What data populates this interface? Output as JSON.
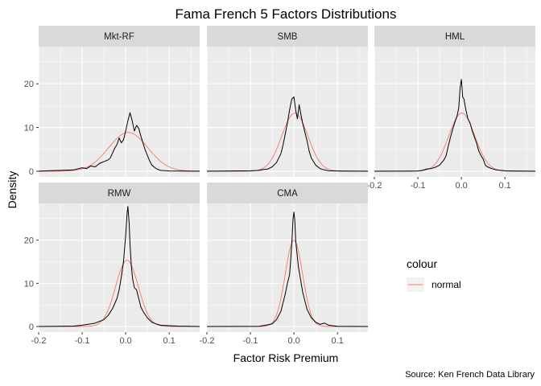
{
  "chart_data": {
    "type": "line",
    "title": "Fama French 5 Factors Distributions",
    "xlabel": "Factor Risk Premium",
    "ylabel": "Density",
    "caption": "Source: Ken French Data Library",
    "xlim": [
      -0.2,
      0.17
    ],
    "ylim": [
      -1.3,
      28.5
    ],
    "x_ticks": [
      -0.2,
      -0.1,
      0.0,
      0.1
    ],
    "x_tick_labels": [
      "-0.2",
      "-0.1",
      "0.0",
      "0.1"
    ],
    "y_ticks": [
      0,
      10,
      20
    ],
    "y_tick_labels": [
      "0",
      "10",
      "20"
    ],
    "grid": true,
    "legend": {
      "title": "colour",
      "position": "right",
      "entries": [
        {
          "label": "normal",
          "color": "#F8766D"
        }
      ]
    },
    "series_colors": {
      "empirical": "#000000",
      "normal": "#F8766D"
    },
    "facets": [
      {
        "label": "Mkt-RF",
        "empirical": [
          [
            -0.2,
            0
          ],
          [
            -0.18,
            0.1
          ],
          [
            -0.15,
            0.2
          ],
          [
            -0.12,
            0.3
          ],
          [
            -0.1,
            0.8
          ],
          [
            -0.09,
            0.6
          ],
          [
            -0.08,
            1.2
          ],
          [
            -0.07,
            1.0
          ],
          [
            -0.06,
            1.8
          ],
          [
            -0.05,
            2.2
          ],
          [
            -0.04,
            2.6
          ],
          [
            -0.035,
            3.1
          ],
          [
            -0.03,
            4.2
          ],
          [
            -0.025,
            5.3
          ],
          [
            -0.02,
            6.1
          ],
          [
            -0.015,
            7.6
          ],
          [
            -0.01,
            6.5
          ],
          [
            -0.005,
            7.2
          ],
          [
            0,
            9.2
          ],
          [
            0.005,
            11.5
          ],
          [
            0.01,
            13.4
          ],
          [
            0.015,
            11.5
          ],
          [
            0.02,
            9.2
          ],
          [
            0.025,
            10.5
          ],
          [
            0.03,
            9.8
          ],
          [
            0.035,
            8.0
          ],
          [
            0.04,
            6.4
          ],
          [
            0.045,
            4.8
          ],
          [
            0.05,
            3.6
          ],
          [
            0.055,
            2.4
          ],
          [
            0.06,
            1.4
          ],
          [
            0.07,
            0.6
          ],
          [
            0.08,
            0.2
          ],
          [
            0.1,
            0.05
          ],
          [
            0.17,
            0
          ]
        ],
        "normal_mean": 0.006,
        "normal_sd": 0.045
      },
      {
        "label": "SMB",
        "empirical": [
          [
            -0.2,
            0
          ],
          [
            -0.1,
            0.1
          ],
          [
            -0.08,
            0.2
          ],
          [
            -0.07,
            0.4
          ],
          [
            -0.06,
            0.5
          ],
          [
            -0.05,
            1.0
          ],
          [
            -0.04,
            2.0
          ],
          [
            -0.03,
            4.0
          ],
          [
            -0.025,
            6.0
          ],
          [
            -0.02,
            8.5
          ],
          [
            -0.015,
            11.0
          ],
          [
            -0.01,
            14.0
          ],
          [
            -0.005,
            16.5
          ],
          [
            0,
            17.0
          ],
          [
            0.004,
            14.0
          ],
          [
            0.008,
            12.0
          ],
          [
            0.012,
            15.2
          ],
          [
            0.016,
            13.0
          ],
          [
            0.02,
            11.0
          ],
          [
            0.025,
            9.0
          ],
          [
            0.03,
            7.0
          ],
          [
            0.035,
            4.6
          ],
          [
            0.04,
            3.0
          ],
          [
            0.05,
            1.4
          ],
          [
            0.06,
            0.6
          ],
          [
            0.07,
            0.3
          ],
          [
            0.08,
            0.1
          ],
          [
            0.1,
            0.05
          ],
          [
            0.17,
            0
          ]
        ],
        "normal_mean": 0.002,
        "normal_sd": 0.03
      },
      {
        "label": "HML",
        "empirical": [
          [
            -0.2,
            0
          ],
          [
            -0.1,
            0.05
          ],
          [
            -0.09,
            0.2
          ],
          [
            -0.08,
            0.5
          ],
          [
            -0.07,
            0.6
          ],
          [
            -0.06,
            0.9
          ],
          [
            -0.05,
            1.4
          ],
          [
            -0.04,
            2.6
          ],
          [
            -0.035,
            3.6
          ],
          [
            -0.03,
            5.8
          ],
          [
            -0.025,
            7.8
          ],
          [
            -0.02,
            9.6
          ],
          [
            -0.015,
            11.2
          ],
          [
            -0.01,
            12.6
          ],
          [
            -0.006,
            14.5
          ],
          [
            -0.003,
            19.0
          ],
          [
            0,
            21.0
          ],
          [
            0.003,
            17.0
          ],
          [
            0.006,
            16.5
          ],
          [
            0.01,
            14.2
          ],
          [
            0.015,
            12.0
          ],
          [
            0.02,
            11.0
          ],
          [
            0.025,
            9.2
          ],
          [
            0.03,
            7.8
          ],
          [
            0.035,
            6.4
          ],
          [
            0.04,
            4.6
          ],
          [
            0.045,
            3.6
          ],
          [
            0.05,
            2.8
          ],
          [
            0.055,
            1.4
          ],
          [
            0.06,
            1.0
          ],
          [
            0.07,
            0.6
          ],
          [
            0.08,
            0.3
          ],
          [
            0.1,
            0.1
          ],
          [
            0.12,
            0.05
          ],
          [
            0.17,
            0
          ]
        ],
        "normal_mean": 0.001,
        "normal_sd": 0.03
      },
      {
        "label": "RMW",
        "empirical": [
          [
            -0.2,
            0
          ],
          [
            -0.12,
            0.1
          ],
          [
            -0.1,
            0.3
          ],
          [
            -0.08,
            0.6
          ],
          [
            -0.07,
            0.8
          ],
          [
            -0.06,
            1.2
          ],
          [
            -0.05,
            1.6
          ],
          [
            -0.04,
            2.6
          ],
          [
            -0.03,
            4.2
          ],
          [
            -0.02,
            6.5
          ],
          [
            -0.015,
            8.5
          ],
          [
            -0.01,
            11.5
          ],
          [
            -0.005,
            15.0
          ],
          [
            0,
            21.0
          ],
          [
            0.003,
            26.0
          ],
          [
            0.005,
            27.8
          ],
          [
            0.008,
            24.0
          ],
          [
            0.01,
            19.0
          ],
          [
            0.013,
            14.0
          ],
          [
            0.016,
            11.0
          ],
          [
            0.02,
            9.0
          ],
          [
            0.025,
            8.5
          ],
          [
            0.03,
            6.5
          ],
          [
            0.035,
            4.5
          ],
          [
            0.04,
            3.5
          ],
          [
            0.05,
            2.0
          ],
          [
            0.06,
            1.0
          ],
          [
            0.07,
            0.6
          ],
          [
            0.08,
            0.3
          ],
          [
            0.1,
            0.2
          ],
          [
            0.12,
            0.1
          ],
          [
            0.17,
            0
          ]
        ],
        "normal_mean": 0.003,
        "normal_sd": 0.026
      },
      {
        "label": "CMA",
        "empirical": [
          [
            -0.2,
            0
          ],
          [
            -0.08,
            0.05
          ],
          [
            -0.06,
            0.4
          ],
          [
            -0.05,
            0.6
          ],
          [
            -0.04,
            1.6
          ],
          [
            -0.03,
            3.5
          ],
          [
            -0.025,
            5.5
          ],
          [
            -0.02,
            7.5
          ],
          [
            -0.015,
            10.0
          ],
          [
            -0.01,
            12.0
          ],
          [
            -0.007,
            16.0
          ],
          [
            -0.004,
            21.0
          ],
          [
            -0.002,
            25.0
          ],
          [
            0,
            26.5
          ],
          [
            0.002,
            24.5
          ],
          [
            0.004,
            20.0
          ],
          [
            0.007,
            17.0
          ],
          [
            0.01,
            14.0
          ],
          [
            0.015,
            11.0
          ],
          [
            0.02,
            8.0
          ],
          [
            0.025,
            6.0
          ],
          [
            0.03,
            4.0
          ],
          [
            0.035,
            3.0
          ],
          [
            0.04,
            2.0
          ],
          [
            0.05,
            1.0
          ],
          [
            0.06,
            0.5
          ],
          [
            0.07,
            0.8
          ],
          [
            0.08,
            0.3
          ],
          [
            0.1,
            0.05
          ],
          [
            0.17,
            0
          ]
        ],
        "normal_mean": 0.0,
        "normal_sd": 0.02
      }
    ]
  }
}
